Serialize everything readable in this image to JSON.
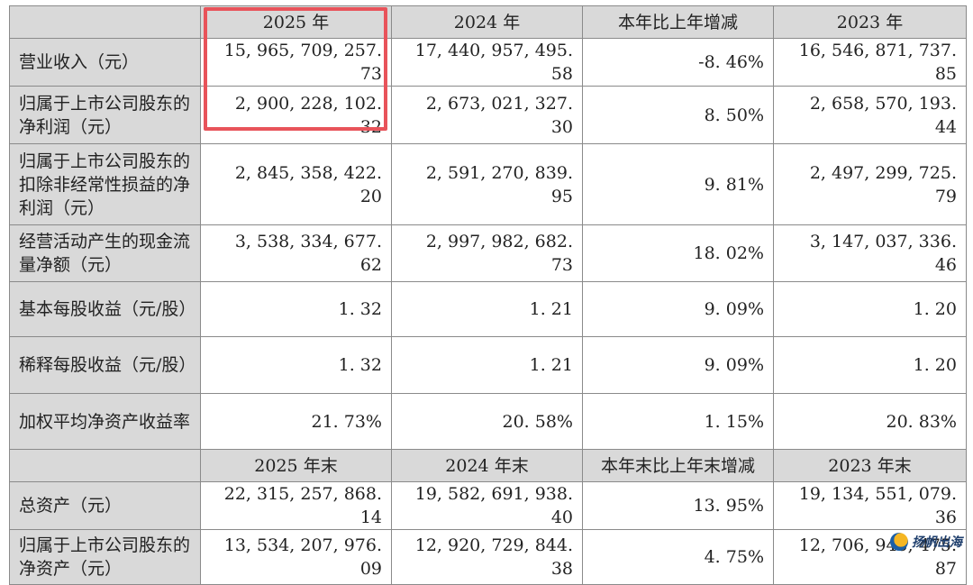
{
  "header1": {
    "label": "",
    "cols": [
      "2025 年",
      "2024 年",
      "本年比上年增减",
      "2023 年"
    ]
  },
  "rows1": [
    {
      "label": "营业收入（元）",
      "values": [
        "15, 965, 709, 257. 73",
        "17, 440, 957, 495. 58",
        "-8. 46%",
        "16, 546, 871, 737. 85"
      ]
    },
    {
      "label": "归属于上市公司股东的净利润（元）",
      "values": [
        "2, 900, 228, 102. 32",
        "2, 673, 021, 327. 30",
        "8. 50%",
        "2, 658, 570, 193. 44"
      ]
    },
    {
      "label": "归属于上市公司股东的扣除非经常性损益的净利润（元）",
      "values": [
        "2, 845, 358, 422. 20",
        "2, 591, 270, 839. 95",
        "9. 81%",
        "2, 497, 299, 725. 79"
      ]
    },
    {
      "label": "经营活动产生的现金流量净额（元）",
      "values": [
        "3, 538, 334, 677. 62",
        "2, 997, 982, 682. 73",
        "18. 02%",
        "3, 147, 037, 336. 46"
      ]
    },
    {
      "label": "基本每股收益（元/股）",
      "values": [
        "1. 32",
        "1. 21",
        "9. 09%",
        "1. 20"
      ]
    },
    {
      "label": "稀释每股收益（元/股）",
      "values": [
        "1. 32",
        "1. 21",
        "9. 09%",
        "1. 20"
      ]
    },
    {
      "label": "加权平均净资产收益率",
      "values": [
        "21. 73%",
        "20. 58%",
        "1. 15%",
        "20. 83%"
      ]
    }
  ],
  "header2": {
    "label": "",
    "cols": [
      "2025 年末",
      "2024 年末",
      "本年末比上年末增减",
      "2023 年末"
    ]
  },
  "rows2": [
    {
      "label": "总资产（元）",
      "values": [
        "22, 315, 257, 868. 14",
        "19, 582, 691, 938. 40",
        "13. 95%",
        "19, 134, 551, 079. 36"
      ]
    },
    {
      "label": "归属于上市公司股东的净资产（元）",
      "values": [
        "13, 534, 207, 976. 09",
        "12, 920, 729, 844. 38",
        "4. 75%",
        "12, 706, 945, 475. 87"
      ]
    }
  ],
  "watermark": {
    "text": "扬帆出海",
    "logo": "sail-logo-icon"
  },
  "colors": {
    "header_bg": "#d9d9d9",
    "highlight": "#e8535a",
    "border": "#8a8a8a"
  }
}
